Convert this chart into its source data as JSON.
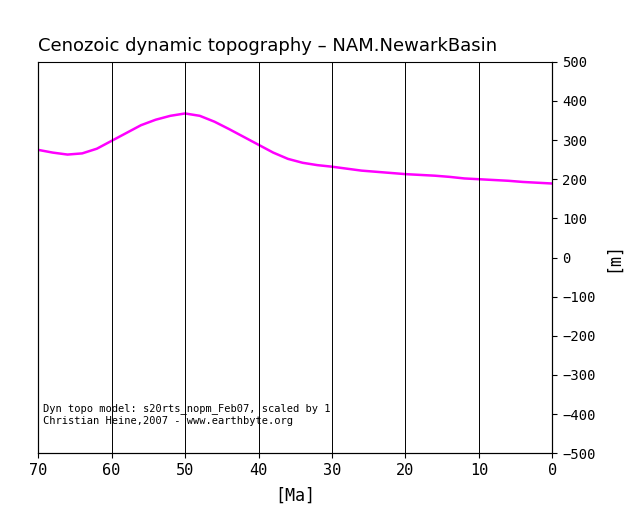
{
  "title": "Cenozoic dynamic topography – NAM.NewarkBasin",
  "xlabel": "[Ma]",
  "ylabel": "[m]",
  "xlim": [
    70,
    0
  ],
  "ylim": [
    -500,
    500
  ],
  "xticks": [
    70,
    60,
    50,
    40,
    30,
    20,
    10,
    0
  ],
  "yticks": [
    -500,
    -400,
    -300,
    -200,
    -100,
    0,
    100,
    200,
    300,
    400,
    500
  ],
  "line_color": "#ff00ff",
  "line_width": 1.8,
  "annotation_line1": "Dyn topo model: s20rts_nopm_Feb07, scaled by 1",
  "annotation_line2": "Christian Heine,2007 - www.earthbyte.org",
  "background_color": "#ffffff",
  "x_data": [
    70,
    68,
    66,
    64,
    62,
    60,
    58,
    56,
    54,
    52,
    50,
    48,
    46,
    44,
    42,
    40,
    38,
    36,
    34,
    32,
    30,
    28,
    26,
    24,
    22,
    20,
    18,
    16,
    14,
    12,
    10,
    8,
    6,
    4,
    2,
    0
  ],
  "y_data": [
    275,
    268,
    263,
    266,
    278,
    298,
    318,
    338,
    352,
    362,
    368,
    362,
    347,
    328,
    308,
    288,
    268,
    252,
    242,
    236,
    232,
    227,
    222,
    219,
    216,
    213,
    211,
    209,
    206,
    202,
    200,
    198,
    196,
    193,
    191,
    189
  ]
}
